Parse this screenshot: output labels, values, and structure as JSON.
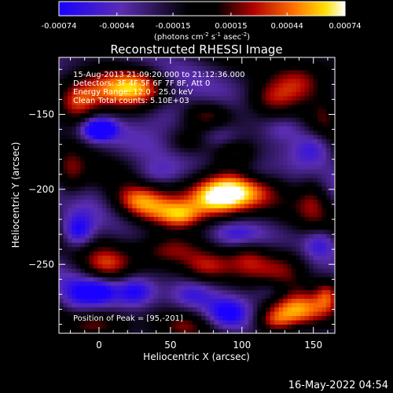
{
  "colorbar": {
    "ticks": [
      "-0.00074",
      "-0.00044",
      "-0.00015",
      "0.00015",
      "0.00044",
      "0.00074"
    ],
    "tick_values": [
      -0.00074,
      -0.00044,
      -0.00015,
      0.00015,
      0.00044,
      0.00074
    ],
    "range": [
      -0.00074,
      0.00074
    ],
    "units_prefix": "(photons cm",
    "units_sup1": "-2",
    "units_mid": " s",
    "units_sup2": "-1",
    "units_mid2": " asec",
    "units_sup3": "-2",
    "units_suffix": ")",
    "colors": [
      "#1a00ff",
      "#5a2db0",
      "#000000",
      "#b00000",
      "#ff7000",
      "#ffe000",
      "#ffffff"
    ]
  },
  "image": {
    "title": "Reconstructed RHESSI Image",
    "info_lines": [
      "15-Aug-2013 21:09:20.000 to 21:12:36.000",
      "Detectors: 3F 4F 5F 6F 7F 8F, Att 0",
      "Energy Range: 12.0 - 25.0 keV",
      "Clean     Total counts: 5.10E+03"
    ],
    "peak_text": "Position of Peak = [95,-201]"
  },
  "chart_data": {
    "type": "heatmap",
    "title": "Reconstructed RHESSI Image",
    "xlabel": "Heliocentric X (arcsec)",
    "ylabel": "Heliocentric Y (arcsec)",
    "xlim": [
      -28,
      165
    ],
    "ylim": [
      -296,
      -112
    ],
    "x_ticks": [
      0,
      50,
      100,
      150
    ],
    "y_ticks": [
      -150,
      -200,
      -250
    ],
    "peak": {
      "x": 95,
      "y": -201
    },
    "value_range": [
      -0.00074,
      0.00074
    ],
    "colorbar_ticks": [
      -0.00074,
      -0.00044,
      -0.00015,
      0.00015,
      0.00044,
      0.00074
    ],
    "blobs": [
      {
        "x": 95,
        "y": -201,
        "v": 0.00074,
        "sx": 18,
        "sy": 10
      },
      {
        "x": 80,
        "y": -207,
        "v": 0.0005,
        "sx": 14,
        "sy": 9
      },
      {
        "x": 138,
        "y": -281,
        "v": 0.00062,
        "sx": 16,
        "sy": 8
      },
      {
        "x": 122,
        "y": -289,
        "v": 0.00045,
        "sx": 10,
        "sy": 6
      },
      {
        "x": 10,
        "y": -133,
        "v": 0.0005,
        "sx": 16,
        "sy": 10
      },
      {
        "x": -15,
        "y": -143,
        "v": 0.0005,
        "sx": 10,
        "sy": 10
      },
      {
        "x": 30,
        "y": -130,
        "v": 0.0004,
        "sx": 12,
        "sy": 8
      },
      {
        "x": 40,
        "y": -215,
        "v": 0.0005,
        "sx": 16,
        "sy": 8
      },
      {
        "x": 25,
        "y": -207,
        "v": 0.0004,
        "sx": 12,
        "sy": 7
      },
      {
        "x": 58,
        "y": -218,
        "v": 0.00038,
        "sx": 10,
        "sy": 6
      },
      {
        "x": 140,
        "y": -130,
        "v": 0.00045,
        "sx": 14,
        "sy": 10
      },
      {
        "x": 120,
        "y": -140,
        "v": 0.00035,
        "sx": 12,
        "sy": 8
      },
      {
        "x": 158,
        "y": -150,
        "v": 0.0003,
        "sx": 8,
        "sy": 10
      },
      {
        "x": 50,
        "y": -240,
        "v": 0.0004,
        "sx": 16,
        "sy": 8
      },
      {
        "x": 75,
        "y": -252,
        "v": 0.00035,
        "sx": 12,
        "sy": 7
      },
      {
        "x": 5,
        "y": -250,
        "v": 0.0004,
        "sx": 12,
        "sy": 8
      },
      {
        "x": 0,
        "y": -290,
        "v": 0.0003,
        "sx": 14,
        "sy": 6
      },
      {
        "x": 130,
        "y": -250,
        "v": 0.0004,
        "sx": 14,
        "sy": 10
      },
      {
        "x": 105,
        "y": -245,
        "v": 0.0003,
        "sx": 10,
        "sy": 8
      },
      {
        "x": 150,
        "y": -205,
        "v": 0.0003,
        "sx": 8,
        "sy": 12
      },
      {
        "x": -20,
        "y": -190,
        "v": 0.0003,
        "sx": 8,
        "sy": 12
      },
      {
        "x": 75,
        "y": -150,
        "v": 0.0003,
        "sx": 12,
        "sy": 6
      },
      {
        "x": 60,
        "y": -170,
        "v": 0.0002,
        "sx": 10,
        "sy": 6
      },
      {
        "x": 160,
        "y": -270,
        "v": 0.0004,
        "sx": 6,
        "sy": 8
      },
      {
        "x": 60,
        "y": -290,
        "v": 0.00025,
        "sx": 12,
        "sy": 6
      },
      {
        "x": 95,
        "y": -175,
        "v": 0.00025,
        "sx": 10,
        "sy": 6
      },
      {
        "x": 0,
        "y": -160,
        "v": -0.00074,
        "sx": 8,
        "sy": 5
      },
      {
        "x": 50,
        "y": -150,
        "v": -0.00035,
        "sx": 14,
        "sy": 8
      },
      {
        "x": 85,
        "y": -165,
        "v": -0.00025,
        "sx": 10,
        "sy": 6
      },
      {
        "x": 110,
        "y": -190,
        "v": -0.0002,
        "sx": 10,
        "sy": 6
      },
      {
        "x": -15,
        "y": -228,
        "v": -0.0006,
        "sx": 8,
        "sy": 8
      },
      {
        "x": 25,
        "y": -268,
        "v": -0.0005,
        "sx": 10,
        "sy": 7
      },
      {
        "x": 0,
        "y": -268,
        "v": -0.0005,
        "sx": 8,
        "sy": 6
      },
      {
        "x": 90,
        "y": -283,
        "v": -0.0004,
        "sx": 10,
        "sy": 7
      },
      {
        "x": 150,
        "y": -172,
        "v": -0.0004,
        "sx": 10,
        "sy": 8
      },
      {
        "x": 155,
        "y": -236,
        "v": -0.00035,
        "sx": 8,
        "sy": 7
      },
      {
        "x": 95,
        "y": -230,
        "v": -0.0003,
        "sx": 12,
        "sy": 6
      },
      {
        "x": 40,
        "y": -190,
        "v": -0.00025,
        "sx": 12,
        "sy": 6
      },
      {
        "x": 120,
        "y": -268,
        "v": -0.0003,
        "sx": 10,
        "sy": 6
      },
      {
        "x": 65,
        "y": -270,
        "v": -0.00025,
        "sx": 10,
        "sy": 6
      },
      {
        "x": 130,
        "y": -160,
        "v": -0.00025,
        "sx": 10,
        "sy": 6
      },
      {
        "x": -15,
        "y": -270,
        "v": -0.0003,
        "sx": 8,
        "sy": 8
      }
    ]
  },
  "footer": {
    "timestamp": "16-May-2022 04:54"
  }
}
